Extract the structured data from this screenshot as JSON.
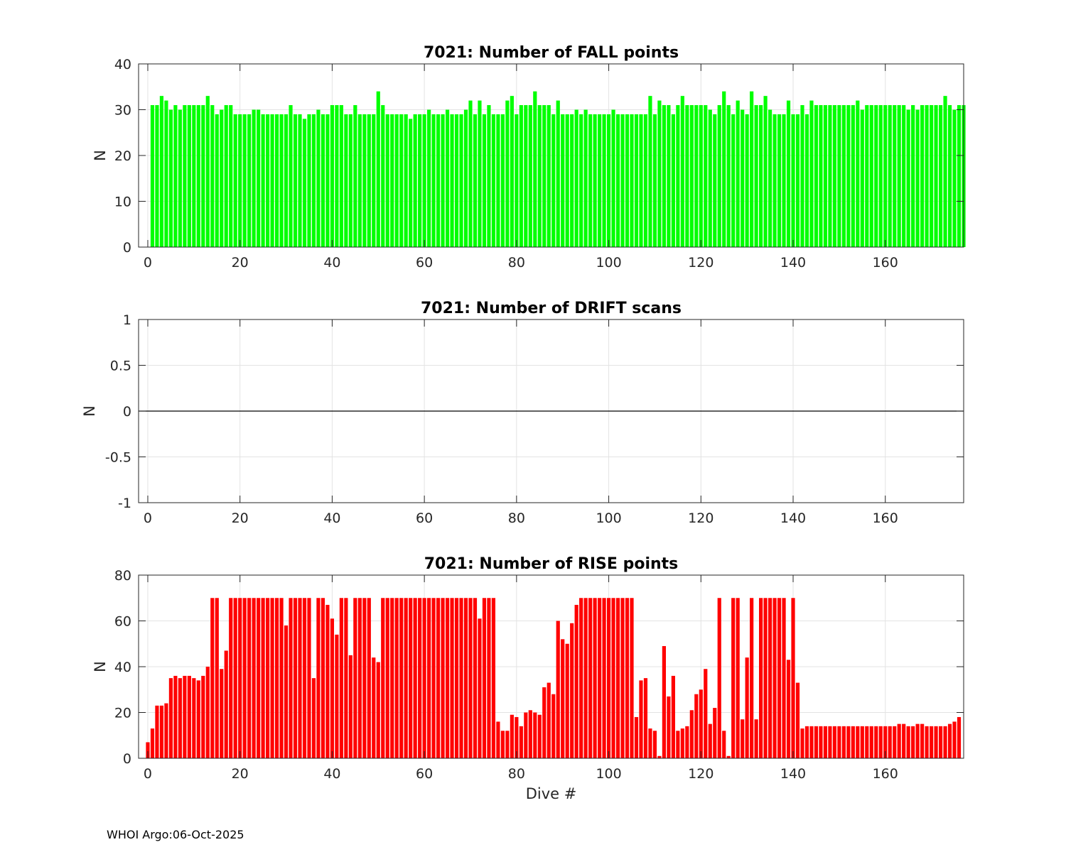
{
  "footer": "WHOI Argo:06-Oct-2025",
  "chart_data": [
    {
      "type": "bar",
      "title": "7021: Number of FALL points",
      "xlabel": "",
      "ylabel": "N",
      "xlim": [
        -2,
        177
      ],
      "ylim": [
        0,
        40
      ],
      "xticks": [
        0,
        20,
        40,
        60,
        80,
        100,
        120,
        140,
        160
      ],
      "yticks": [
        0,
        10,
        20,
        30,
        40
      ],
      "ytick_labels": [
        "0",
        "10",
        "20",
        "30",
        "40"
      ],
      "color": "#00ff00",
      "x_start": 1,
      "values": [
        31,
        31,
        33,
        32,
        30,
        31,
        30,
        31,
        31,
        31,
        31,
        31,
        33,
        31,
        29,
        30,
        31,
        31,
        29,
        29,
        29,
        29,
        30,
        30,
        29,
        29,
        29,
        29,
        29,
        29,
        31,
        29,
        29,
        28,
        29,
        29,
        30,
        29,
        29,
        31,
        31,
        31,
        29,
        29,
        31,
        29,
        29,
        29,
        29,
        34,
        31,
        29,
        29,
        29,
        29,
        29,
        28,
        29,
        29,
        29,
        30,
        29,
        29,
        29,
        30,
        29,
        29,
        29,
        30,
        32,
        29,
        32,
        29,
        31,
        29,
        29,
        29,
        32,
        33,
        29,
        31,
        31,
        31,
        34,
        31,
        31,
        31,
        29,
        32,
        29,
        29,
        29,
        30,
        29,
        30,
        29,
        29,
        29,
        29,
        29,
        30,
        29,
        29,
        29,
        29,
        29,
        29,
        29,
        33,
        29,
        32,
        31,
        31,
        29,
        31,
        33,
        31,
        31,
        31,
        31,
        31,
        30,
        29,
        31,
        34,
        31,
        29,
        32,
        30,
        29,
        34,
        31,
        31,
        33,
        30,
        29,
        29,
        29,
        32,
        29,
        29,
        31,
        29,
        32,
        31,
        31,
        31,
        31,
        31,
        31,
        31,
        31,
        31,
        32,
        30,
        31,
        31,
        31,
        31,
        31,
        31,
        31,
        31,
        31,
        30,
        31,
        30,
        31,
        31,
        31,
        31,
        31,
        33,
        31,
        30,
        31,
        31
      ]
    },
    {
      "type": "bar",
      "title": "7021: Number of DRIFT scans",
      "xlabel": "",
      "ylabel": "N",
      "xlim": [
        -2,
        177
      ],
      "ylim": [
        -1,
        1
      ],
      "xticks": [
        0,
        20,
        40,
        60,
        80,
        100,
        120,
        140,
        160
      ],
      "yticks": [
        -1,
        -0.5,
        0,
        0.5,
        1
      ],
      "ytick_labels": [
        "-1",
        "-0.5",
        "0",
        "0.5",
        "1"
      ],
      "color": "#000000",
      "x_start": 0,
      "values": []
    },
    {
      "type": "bar",
      "title": "7021: Number of RISE points",
      "xlabel": "Dive #",
      "ylabel": "N",
      "xlim": [
        -2,
        177
      ],
      "ylim": [
        0,
        80
      ],
      "xticks": [
        0,
        20,
        40,
        60,
        80,
        100,
        120,
        140,
        160
      ],
      "yticks": [
        0,
        20,
        40,
        60,
        80
      ],
      "ytick_labels": [
        "0",
        "20",
        "40",
        "60",
        "80"
      ],
      "color": "#ff0000",
      "x_start": 0,
      "values": [
        7,
        13,
        23,
        23,
        24,
        35,
        36,
        35,
        36,
        36,
        35,
        34,
        36,
        40,
        70,
        70,
        39,
        47,
        70,
        70,
        70,
        70,
        70,
        70,
        70,
        70,
        70,
        70,
        70,
        70,
        58,
        70,
        70,
        70,
        70,
        70,
        35,
        70,
        70,
        67,
        61,
        54,
        70,
        70,
        45,
        70,
        70,
        70,
        70,
        44,
        42,
        70,
        70,
        70,
        70,
        70,
        70,
        70,
        70,
        70,
        70,
        70,
        70,
        70,
        70,
        70,
        70,
        70,
        70,
        70,
        70,
        70,
        61,
        70,
        70,
        70,
        16,
        12,
        12,
        19,
        18,
        14,
        20,
        21,
        20,
        19,
        31,
        33,
        28,
        60,
        52,
        50,
        59,
        67,
        70,
        70,
        70,
        70,
        70,
        70,
        70,
        70,
        70,
        70,
        70,
        70,
        18,
        34,
        35,
        13,
        12,
        1,
        49,
        27,
        36,
        12,
        13,
        14,
        21,
        28,
        30,
        39,
        15,
        22,
        70,
        12,
        1,
        70,
        70,
        17,
        44,
        70,
        17,
        70,
        70,
        70,
        70,
        70,
        70,
        43,
        70,
        33,
        13,
        14,
        14,
        14,
        14,
        14,
        14,
        14,
        14,
        14,
        14,
        14,
        14,
        14,
        14,
        14,
        14,
        14,
        14,
        14,
        14,
        15,
        15,
        14,
        14,
        15,
        15,
        14,
        14,
        14,
        14,
        14,
        15,
        16,
        18
      ]
    }
  ]
}
